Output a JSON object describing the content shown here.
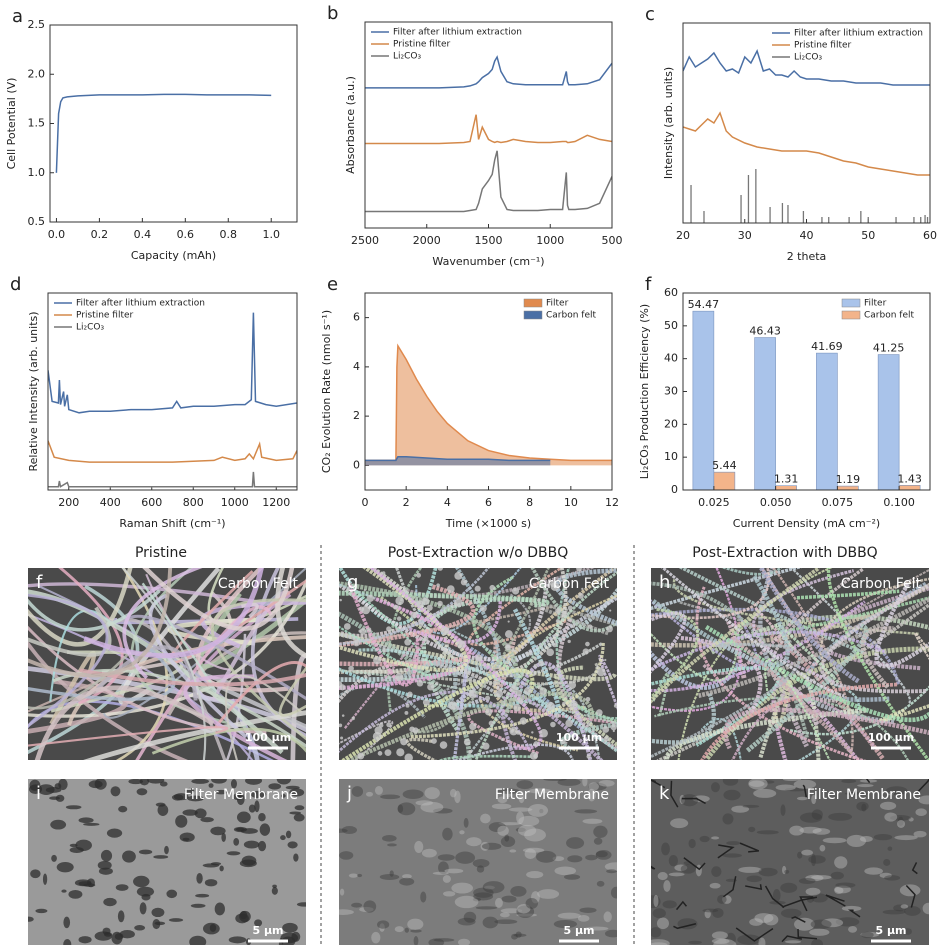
{
  "chart_data": [
    {
      "type": "line",
      "panel": "a",
      "xlabel": "Capacity (mAh)",
      "ylabel": "Cell Potential (V)",
      "xlim": [
        -0.03,
        1.12
      ],
      "ylim": [
        0.5,
        2.5
      ],
      "xticks": [
        {
          "value": 0,
          "label": "0.0"
        },
        0.2,
        0.4,
        0.6,
        0.8,
        {
          "value": 1,
          "label": "1.0"
        }
      ],
      "yticks": [
        0.5,
        {
          "value": 1,
          "label": "1.0"
        },
        1.5,
        {
          "value": 2,
          "label": "2.0"
        },
        2.5
      ],
      "x": [
        0,
        0.005,
        0.01,
        0.02,
        0.03,
        0.05,
        0.1,
        0.2,
        0.3,
        0.4,
        0.5,
        0.6,
        0.7,
        0.8,
        0.9,
        1.0
      ],
      "series": [
        {
          "color": "#4a6fa5",
          "values": [
            1.0,
            1.3,
            1.6,
            1.72,
            1.76,
            1.77,
            1.78,
            1.79,
            1.79,
            1.79,
            1.795,
            1.795,
            1.79,
            1.79,
            1.79,
            1.785
          ]
        }
      ]
    },
    {
      "type": "line",
      "panel": "b",
      "xlabel": "Wavenumber (cm⁻¹)",
      "ylabel": "Absorbance (a.u.)",
      "legend": "upper left",
      "xlim": [
        2500,
        500
      ],
      "ylim": [
        0,
        10
      ],
      "xticks": [
        2500,
        2000,
        1500,
        1000,
        500
      ],
      "x": [
        2500,
        2300,
        2100,
        1900,
        1700,
        1650,
        1600,
        1580,
        1550,
        1500,
        1470,
        1450,
        1430,
        1400,
        1350,
        1300,
        1200,
        1100,
        1000,
        900,
        870,
        860,
        850,
        800,
        700,
        600,
        500
      ],
      "series": [
        {
          "name": "Filter after lithium extraction",
          "color": "#4a6fa5",
          "values": [
            6.8,
            6.8,
            6.8,
            6.8,
            6.85,
            6.9,
            7.0,
            7.1,
            7.3,
            7.5,
            7.7,
            8.1,
            8.3,
            7.6,
            7.1,
            7.0,
            6.95,
            6.95,
            6.95,
            6.95,
            7.6,
            7.1,
            6.95,
            6.95,
            7.0,
            7.2,
            8.0
          ]
        },
        {
          "name": "Pristine filter",
          "color": "#d4894a",
          "values": [
            4.1,
            4.1,
            4.1,
            4.1,
            4.15,
            4.2,
            5.5,
            4.3,
            4.9,
            4.3,
            4.2,
            4.15,
            4.2,
            4.15,
            4.2,
            4.3,
            4.2,
            4.15,
            4.15,
            4.2,
            4.2,
            4.15,
            4.15,
            4.2,
            4.5,
            4.3,
            4.2
          ]
        },
        {
          "name": "Li₂CO₃",
          "color": "#777777",
          "values": [
            0.8,
            0.8,
            0.8,
            0.8,
            0.8,
            0.85,
            0.9,
            1.2,
            1.9,
            2.3,
            2.6,
            3.3,
            3.75,
            1.5,
            0.9,
            0.85,
            0.85,
            0.85,
            0.9,
            0.9,
            2.7,
            1.1,
            0.9,
            0.9,
            0.95,
            1.2,
            2.5
          ]
        }
      ]
    },
    {
      "type": "line",
      "panel": "c",
      "xlabel": "2 theta",
      "ylabel": "Intensity (arb. units)",
      "legend": "upper right",
      "xlim": [
        20,
        60
      ],
      "ylim": [
        0,
        10
      ],
      "xticks": [
        20,
        30,
        40,
        50,
        60
      ],
      "series": [
        {
          "name": "Filter after lithium extraction",
          "color": "#4a6fa5",
          "x": [
            20,
            21,
            22,
            23,
            24,
            25,
            26,
            27,
            28,
            29,
            30,
            31,
            32,
            33,
            34,
            35,
            36,
            37,
            38,
            39,
            40,
            42,
            44,
            46,
            48,
            50,
            52,
            54,
            56,
            58,
            60
          ],
          "values": [
            7.6,
            8.3,
            7.8,
            8.0,
            8.2,
            8.5,
            8.0,
            7.6,
            7.7,
            7.5,
            8.3,
            8.0,
            8.6,
            7.6,
            7.7,
            7.4,
            7.4,
            7.3,
            7.6,
            7.3,
            7.2,
            7.2,
            7.1,
            7.1,
            7.0,
            7.0,
            7.0,
            6.9,
            6.9,
            6.9,
            6.9
          ]
        },
        {
          "name": "Pristine filter",
          "color": "#d4894a",
          "x": [
            20,
            21,
            22,
            23,
            24,
            25,
            26,
            27,
            28,
            30,
            32,
            34,
            36,
            38,
            40,
            42,
            44,
            46,
            48,
            50,
            52,
            54,
            56,
            58,
            60
          ],
          "values": [
            4.8,
            4.7,
            4.6,
            4.9,
            5.2,
            5.0,
            5.5,
            4.6,
            4.3,
            4.0,
            3.8,
            3.7,
            3.6,
            3.6,
            3.6,
            3.5,
            3.3,
            3.1,
            3.0,
            2.8,
            2.7,
            2.6,
            2.5,
            2.4,
            2.4
          ]
        },
        {
          "name": "Li₂CO₃",
          "color": "#777777",
          "style": "sticks",
          "x": [
            21.3,
            23.4,
            29.4,
            30.6,
            31.8,
            34.1,
            36.1,
            37.0,
            39.5,
            42.5,
            43.6,
            46.9,
            48.8,
            50.0,
            54.5,
            57.4,
            58.5,
            59.2,
            59.6
          ],
          "values": [
            1.9,
            0.6,
            1.4,
            2.4,
            2.7,
            0.8,
            1.0,
            0.9,
            0.6,
            0.3,
            0.3,
            0.3,
            0.6,
            0.3,
            0.3,
            0.3,
            0.3,
            0.4,
            0.3
          ]
        }
      ]
    },
    {
      "type": "line",
      "panel": "d",
      "xlabel": "Raman Shift (cm⁻¹)",
      "ylabel": "Relative Intensity (arb. units)",
      "legend": "upper left",
      "xlim": [
        100,
        1300
      ],
      "ylim": [
        0,
        12
      ],
      "xticks": [
        200,
        400,
        600,
        800,
        1000,
        1200
      ],
      "series": [
        {
          "name": "Filter after lithium extraction",
          "color": "#4a6fa5",
          "x": [
            100,
            120,
            150,
            155,
            160,
            175,
            180,
            193,
            200,
            250,
            300,
            400,
            500,
            600,
            700,
            720,
            740,
            800,
            900,
            1000,
            1050,
            1080,
            1090,
            1100,
            1150,
            1200,
            1300
          ],
          "values": [
            7.3,
            5.4,
            5.3,
            6.7,
            5.2,
            6.0,
            5.1,
            5.8,
            4.9,
            4.7,
            4.8,
            4.8,
            4.9,
            4.9,
            5.0,
            5.4,
            5.0,
            5.1,
            5.1,
            5.2,
            5.2,
            5.5,
            10.8,
            5.4,
            5.2,
            5.1,
            5.3
          ]
        },
        {
          "name": "Pristine filter",
          "color": "#d4894a",
          "x": [
            100,
            130,
            200,
            300,
            400,
            600,
            700,
            800,
            900,
            940,
            1000,
            1050,
            1070,
            1090,
            1120,
            1130,
            1200,
            1280,
            1300
          ],
          "values": [
            3.0,
            2.0,
            1.8,
            1.7,
            1.7,
            1.7,
            1.7,
            1.75,
            1.8,
            2.0,
            1.8,
            1.9,
            2.2,
            1.9,
            2.8,
            2.0,
            1.8,
            1.9,
            2.4
          ]
        },
        {
          "name": "Li₂CO₃",
          "color": "#777777",
          "x": [
            100,
            150,
            155,
            160,
            193,
            200,
            500,
            1000,
            1085,
            1090,
            1095,
            1300
          ],
          "values": [
            0.2,
            0.2,
            0.55,
            0.2,
            0.45,
            0.2,
            0.2,
            0.2,
            0.2,
            1.1,
            0.2,
            0.2
          ]
        }
      ]
    },
    {
      "type": "area",
      "panel": "e",
      "xlabel": "Time (×1000 s)",
      "ylabel": "CO₂ Evolution Rate (nmol s⁻¹)",
      "legend": "upper right",
      "xlim": [
        0,
        12
      ],
      "ylim": [
        -1,
        7
      ],
      "xticks": [
        0,
        2,
        4,
        6,
        8,
        10,
        12
      ],
      "yticks": [
        0,
        2,
        4,
        6
      ],
      "series": [
        {
          "name": "Filter",
          "color": "#e08a4e",
          "x": [
            0,
            1,
            1.5,
            1.55,
            1.6,
            2,
            2.5,
            3,
            3.5,
            4,
            5,
            6,
            7,
            8,
            9,
            10,
            11,
            12
          ],
          "values": [
            0.2,
            0.2,
            0.2,
            4.0,
            4.85,
            4.3,
            3.5,
            2.8,
            2.2,
            1.7,
            1.0,
            0.6,
            0.4,
            0.3,
            0.25,
            0.2,
            0.2,
            0.2
          ]
        },
        {
          "name": "Carbon felt",
          "color": "#4a6fa5",
          "x": [
            0,
            1,
            1.5,
            1.6,
            2,
            3,
            4,
            5,
            6,
            7,
            8,
            9
          ],
          "values": [
            0.2,
            0.2,
            0.2,
            0.35,
            0.35,
            0.3,
            0.25,
            0.25,
            0.25,
            0.2,
            0.2,
            0.2
          ]
        }
      ]
    },
    {
      "type": "bar",
      "panel": "f",
      "xlabel": "Current Density (mA cm⁻²)",
      "ylabel": "Li₂CO₃ Production Efficiency (%)",
      "legend": "upper right",
      "ylim": [
        0,
        60
      ],
      "yticks": [
        0,
        10,
        20,
        30,
        40,
        50,
        60
      ],
      "categories": [
        "0.025",
        "0.050",
        "0.075",
        "0.100"
      ],
      "series": [
        {
          "name": "Filter",
          "color": "#a9c3ea",
          "values": [
            54.47,
            46.43,
            41.69,
            41.25
          ]
        },
        {
          "name": "Carbon felt",
          "color": "#f3b48a",
          "values": [
            5.44,
            1.31,
            1.19,
            1.43
          ]
        }
      ]
    }
  ],
  "columns": [
    "Pristine",
    "Post-Extraction w/o DBBQ",
    "Post-Extraction with DBBQ"
  ],
  "images": [
    {
      "panel": "f",
      "label": "Carbon Felt",
      "scale": "100 µm"
    },
    {
      "panel": "g",
      "label": "Carbon Felt",
      "scale": "100 µm"
    },
    {
      "panel": "h",
      "label": "Carbon Felt",
      "scale": "100 µm"
    },
    {
      "panel": "i",
      "label": "Filter Membrane",
      "scale": "5 µm"
    },
    {
      "panel": "j",
      "label": "Filter Membrane",
      "scale": "5 µm"
    },
    {
      "panel": "k",
      "label": "Filter Membrane",
      "scale": "5 µm"
    }
  ]
}
